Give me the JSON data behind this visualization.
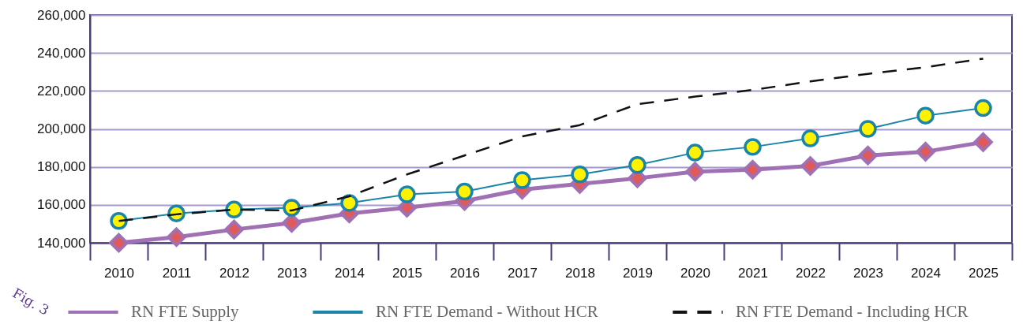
{
  "chart_data": {
    "type": "line",
    "categories": [
      "2010",
      "2011",
      "2012",
      "2013",
      "2014",
      "2015",
      "2016",
      "2017",
      "2018",
      "2019",
      "2020",
      "2021",
      "2022",
      "2023",
      "2024",
      "2025"
    ],
    "series": [
      {
        "name": "RN FTE Supply",
        "color": "#a070b4",
        "marker": "diamond",
        "line_style": "solid",
        "values": [
          140000,
          143000,
          147000,
          150500,
          155500,
          158500,
          162000,
          168000,
          171000,
          174000,
          177500,
          178500,
          180500,
          186000,
          188000,
          193000
        ]
      },
      {
        "name": "RN FTE Demand - Without HCR",
        "color": "#1a85a8",
        "marker": "circle",
        "line_style": "solid",
        "values": [
          151500,
          155500,
          157500,
          158500,
          161000,
          165500,
          167000,
          173000,
          176000,
          181000,
          187500,
          190500,
          195000,
          200000,
          207000,
          211000
        ]
      },
      {
        "name": "RN FTE Demand - Including HCR",
        "color": "#111111",
        "marker": "none",
        "line_style": "dashed",
        "values": [
          151500,
          155000,
          157500,
          157000,
          164500,
          176000,
          186000,
          196000,
          202000,
          213000,
          217000,
          220500,
          225000,
          229000,
          232500,
          237000
        ]
      }
    ],
    "ylim": [
      140000,
      260000
    ],
    "yticks": [
      {
        "value": 140000,
        "label": "140,000"
      },
      {
        "value": 160000,
        "label": "160,000"
      },
      {
        "value": 180000,
        "label": "180,000"
      },
      {
        "value": 200000,
        "label": "200,000"
      },
      {
        "value": 220000,
        "label": "220,000"
      },
      {
        "value": 240000,
        "label": "240,000"
      },
      {
        "value": 260000,
        "label": "260,000"
      }
    ],
    "grid": "y",
    "legend": "bottom",
    "annotations": [
      "Fig. 3"
    ]
  }
}
